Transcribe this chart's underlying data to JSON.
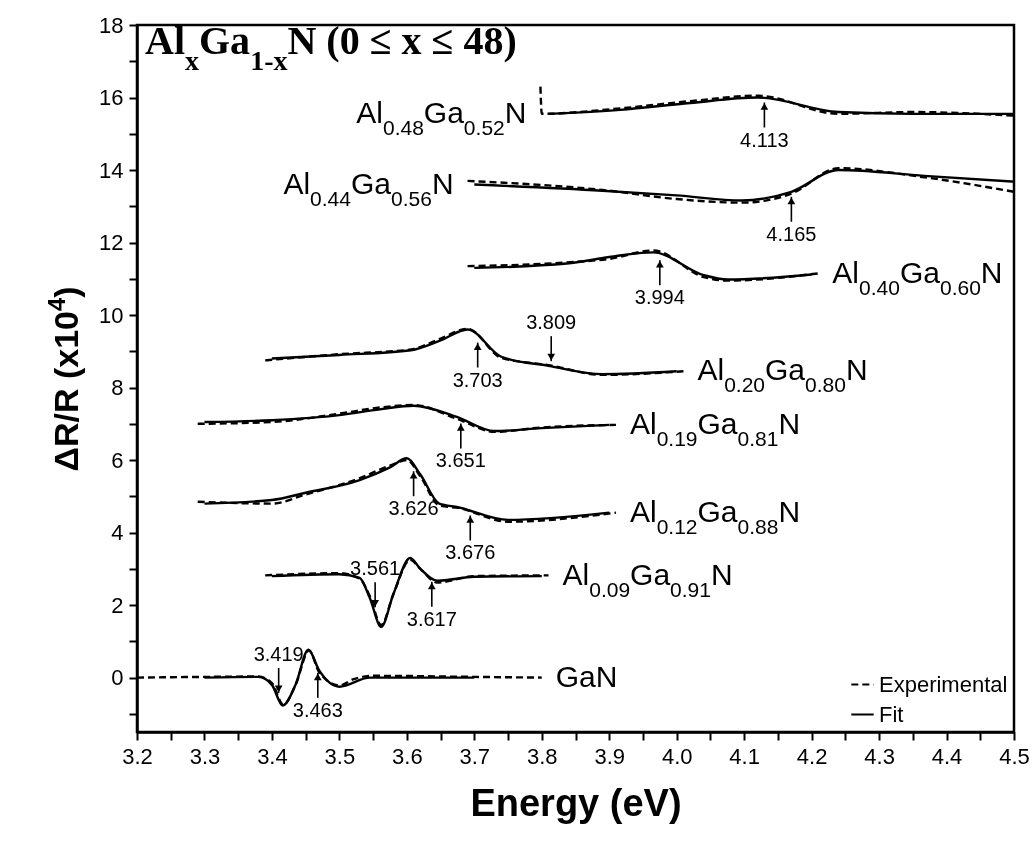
{
  "chart_data": {
    "type": "line",
    "title": "Al$_{x}$Ga$_{1-x}$N (0 ≤ x ≤ 48)",
    "xlabel": "Energy (eV)",
    "ylabel": "ΔR/R (x10$^{4}$)",
    "xlim": [
      3.2,
      4.5
    ],
    "ylim": [
      -1.5,
      18
    ],
    "xticks": [
      3.2,
      {
        "value": 3.25,
        "label": null
      },
      3.3,
      {
        "value": 3.35,
        "label": null
      },
      3.4,
      {
        "value": 3.45,
        "label": null
      },
      3.5,
      {
        "value": 3.55,
        "label": null
      },
      3.6,
      {
        "value": 3.65,
        "label": null
      },
      3.7,
      {
        "value": 3.75,
        "label": null
      },
      3.8,
      {
        "value": 3.85,
        "label": null
      },
      3.9,
      {
        "value": 3.95,
        "label": null
      },
      {
        "value": 4,
        "label": "4.0"
      },
      {
        "value": 4.05,
        "label": null
      },
      4.1,
      {
        "value": 4.15,
        "label": null
      },
      4.2,
      {
        "value": 4.25,
        "label": null
      },
      4.3,
      {
        "value": 4.35,
        "label": null
      },
      4.4,
      {
        "value": 4.45,
        "label": null
      },
      4.5
    ],
    "yticks": [
      {
        "value": -1,
        "label": null
      },
      0,
      {
        "value": 1,
        "label": null
      },
      2,
      {
        "value": 3,
        "label": null
      },
      4,
      {
        "value": 5,
        "label": null
      },
      6,
      {
        "value": 7,
        "label": null
      },
      8,
      {
        "value": 9,
        "label": null
      },
      10,
      {
        "value": 11,
        "label": null
      },
      12,
      {
        "value": 13,
        "label": null
      },
      14,
      {
        "value": 15,
        "label": null
      },
      16,
      {
        "value": 17,
        "label": null
      },
      18
    ],
    "legend": "bottom right",
    "series": [
      {
        "name": "Experimental",
        "color": "#000000",
        "line_style": "dashed",
        "x": [
          3.2,
          3.3,
          3.38,
          3.4,
          3.417,
          3.435,
          3.455,
          3.47,
          3.5,
          3.52,
          3.55,
          3.7,
          3.8
        ],
        "values": [
          0,
          0.02,
          0.03,
          -0.15,
          -0.75,
          -0.2,
          0.75,
          0.15,
          -0.22,
          -0.05,
          0.05,
          0.02,
          0
        ]
      },
      {
        "name": "Fit",
        "color": "#000000",
        "line_style": "solid",
        "x": [
          3.3,
          3.38,
          3.4,
          3.416,
          3.435,
          3.454,
          3.47,
          3.5,
          3.545,
          3.7
        ],
        "values": [
          0,
          0.02,
          -0.2,
          -0.77,
          -0.2,
          0.77,
          0.2,
          -0.25,
          0,
          0
        ]
      },
      {
        "color": "#000000",
        "line_style": "dashed",
        "x": [
          3.39,
          3.5,
          3.53,
          3.545,
          3.562,
          3.58,
          3.605,
          3.62,
          3.645,
          3.7,
          3.81
        ],
        "values": [
          2.82,
          2.88,
          2.73,
          2.25,
          1.45,
          2.3,
          3.25,
          3.0,
          2.62,
          2.8,
          2.82
        ]
      },
      {
        "color": "#000000",
        "line_style": "solid",
        "x": [
          3.4,
          3.5,
          3.53,
          3.545,
          3.562,
          3.58,
          3.605,
          3.62,
          3.645,
          3.7,
          3.8
        ],
        "values": [
          2.8,
          2.85,
          2.75,
          2.2,
          1.4,
          2.3,
          3.3,
          3.0,
          2.67,
          2.78,
          2.8
        ]
      },
      {
        "color": "#000000",
        "line_style": "dashed",
        "x": [
          3.29,
          3.4,
          3.45,
          3.53,
          3.575,
          3.6,
          3.62,
          3.648,
          3.676,
          3.75,
          3.91
        ],
        "values": [
          4.85,
          4.8,
          5.05,
          5.5,
          5.85,
          6.0,
          5.55,
          4.75,
          4.68,
          4.3,
          4.55
        ]
      },
      {
        "color": "#000000",
        "line_style": "solid",
        "x": [
          3.3,
          3.4,
          3.45,
          3.53,
          3.575,
          3.6,
          3.62,
          3.648,
          3.676,
          3.75,
          3.9
        ],
        "values": [
          4.8,
          4.9,
          5.1,
          5.45,
          5.8,
          6.05,
          5.6,
          4.8,
          4.7,
          4.35,
          4.55
        ]
      },
      {
        "color": "#000000",
        "line_style": "dashed",
        "x": [
          3.29,
          3.4,
          3.5,
          3.56,
          3.61,
          3.673,
          3.73,
          3.8,
          3.91
        ],
        "values": [
          7.0,
          7.05,
          7.28,
          7.45,
          7.52,
          7.15,
          6.78,
          6.9,
          6.97
        ]
      },
      {
        "color": "#000000",
        "line_style": "solid",
        "x": [
          3.3,
          3.4,
          3.5,
          3.56,
          3.61,
          3.673,
          3.73,
          3.8,
          3.9
        ],
        "values": [
          7.05,
          7.1,
          7.24,
          7.4,
          7.5,
          7.2,
          6.8,
          6.88,
          6.97
        ]
      },
      {
        "color": "#000000",
        "line_style": "dashed",
        "x": [
          3.39,
          3.5,
          3.606,
          3.65,
          3.69,
          3.74,
          3.81,
          3.89,
          4.01
        ],
        "values": [
          8.75,
          8.92,
          9.05,
          9.35,
          9.62,
          8.82,
          8.62,
          8.35,
          8.45
        ]
      },
      {
        "color": "#000000",
        "line_style": "solid",
        "x": [
          3.4,
          3.5,
          3.606,
          3.65,
          3.69,
          3.74,
          3.81,
          3.89,
          4.0
        ],
        "values": [
          8.8,
          8.9,
          9.03,
          9.3,
          9.6,
          8.85,
          8.6,
          8.37,
          8.45
        ]
      },
      {
        "color": "#000000",
        "line_style": "dashed",
        "x": [
          3.69,
          3.837,
          3.9,
          3.965,
          4.04,
          4.076,
          4.21
        ],
        "values": [
          11.35,
          11.45,
          11.55,
          11.78,
          11.05,
          10.95,
          11.15
        ]
      },
      {
        "color": "#000000",
        "line_style": "solid",
        "x": [
          3.7,
          3.837,
          3.9,
          3.965,
          4.04,
          4.076,
          4.2
        ],
        "values": [
          11.3,
          11.42,
          11.6,
          11.73,
          11.1,
          10.98,
          11.12
        ]
      },
      {
        "color": "#000000",
        "line_style": "dashed",
        "x": [
          3.69,
          3.89,
          4.0,
          4.097,
          4.17,
          4.24,
          4.367,
          4.5
        ],
        "values": [
          13.7,
          13.45,
          13.2,
          13.1,
          13.35,
          14.05,
          13.8,
          13.4
        ]
      },
      {
        "color": "#000000",
        "line_style": "solid",
        "x": [
          3.7,
          3.89,
          4.0,
          4.097,
          4.17,
          4.24,
          4.367,
          4.5
        ],
        "values": [
          13.6,
          13.43,
          13.3,
          13.16,
          13.4,
          14.0,
          13.84,
          13.68
        ]
      },
      {
        "color": "#000000",
        "line_style": "dashed",
        "x": [
          3.798,
          3.8,
          3.916,
          4.02,
          4.12,
          4.24,
          4.35,
          4.5
        ],
        "values": [
          16.3,
          15.55,
          15.7,
          15.9,
          16.05,
          15.55,
          15.6,
          15.5
        ]
      },
      {
        "color": "#000000",
        "line_style": "solid",
        "x": [
          3.81,
          3.916,
          4.02,
          4.12,
          4.24,
          4.35,
          4.5
        ],
        "values": [
          15.55,
          15.66,
          15.85,
          16.0,
          15.6,
          15.55,
          15.55
        ]
      }
    ],
    "annotations": [
      "GaN",
      "Al$_{0.09}$Ga$_{0.91}$N",
      "Al$_{0.12}$Ga$_{0.88}$N",
      "Al$_{0.19}$Ga$_{0.81}$N",
      "Al$_{0.20}$Ga$_{0.80}$N",
      "Al$_{0.40}$Ga$_{0.60}$N",
      "Al$_{0.44}$Ga$_{0.56}$N",
      "Al$_{0.48}$Ga$_{0.52}$N",
      {
        "text": "4.113",
        "x": 4.13,
        "y": 16.0
      },
      {
        "text": "4.165",
        "x": 4.17,
        "y": 13.4
      },
      {
        "text": "3.994",
        "x": 3.975,
        "y": 11.65
      },
      {
        "text": "3.703",
        "x": 3.705,
        "y": 9.38
      },
      {
        "text": "3.809",
        "x": 3.814,
        "y": 8.59
      },
      {
        "text": "3.651",
        "x": 3.68,
        "y": 7.15
      },
      {
        "text": "3.676",
        "x": 3.694,
        "y": 4.61
      },
      {
        "text": "3.626",
        "x": 3.61,
        "y": 5.83
      },
      {
        "text": "3.561",
        "x": 3.553,
        "y": 1.8
      },
      {
        "text": "3.617",
        "x": 3.637,
        "y": 2.78
      },
      {
        "text": "3.419",
        "x": 3.41,
        "y": -0.56
      },
      {
        "text": "3.463",
        "x": 3.468,
        "y": 0.27
      }
    ]
  }
}
